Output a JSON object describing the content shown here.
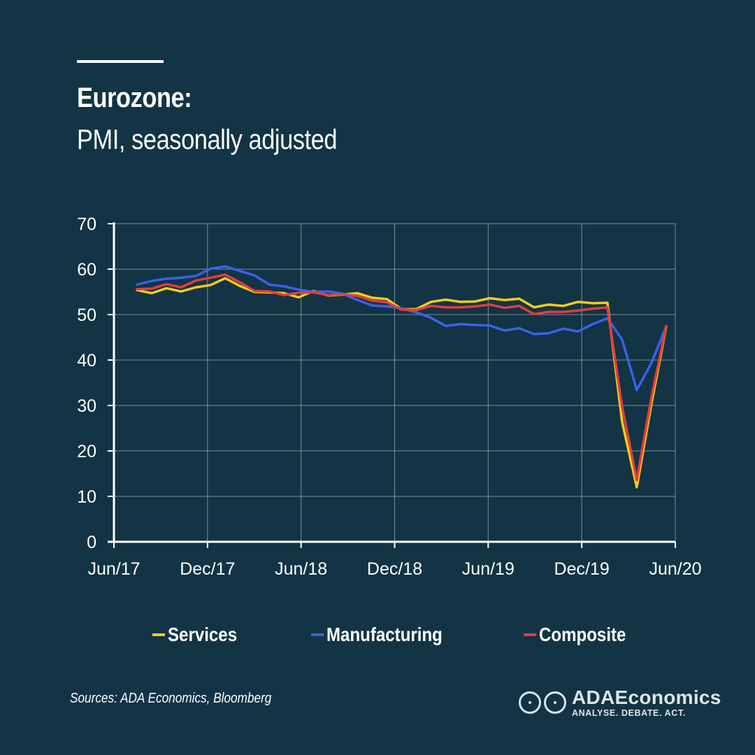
{
  "header": {
    "title": "Eurozone:",
    "subtitle": "PMI, seasonally adjusted"
  },
  "chart_data": {
    "type": "line",
    "x": [
      "Jun/17",
      "Jul/17",
      "Aug/17",
      "Sep/17",
      "Oct/17",
      "Nov/17",
      "Dec/17",
      "Jan/18",
      "Feb/18",
      "Mar/18",
      "Apr/18",
      "May/18",
      "Jun/18",
      "Jul/18",
      "Aug/18",
      "Sep/18",
      "Oct/18",
      "Nov/18",
      "Dec/18",
      "Jan/19",
      "Feb/19",
      "Mar/19",
      "Apr/19",
      "May/19",
      "Jun/19",
      "Jul/19",
      "Aug/19",
      "Sep/19",
      "Oct/19",
      "Nov/19",
      "Dec/19",
      "Jan/20",
      "Feb/20",
      "Mar/20",
      "Apr/20",
      "May/20",
      "Jun/20"
    ],
    "xticks": [
      "Jun/17",
      "Dec/17",
      "Jun/18",
      "Dec/18",
      "Jun/19",
      "Dec/19",
      "Jun/20"
    ],
    "ylim": [
      0,
      70
    ],
    "yticks": [
      0,
      10,
      20,
      30,
      40,
      50,
      60,
      70
    ],
    "grid": true,
    "legend_position": "bottom",
    "series": [
      {
        "name": "Services",
        "color": "#f2cd18",
        "values": [
          55.4,
          54.7,
          55.8,
          55.1,
          56.0,
          56.5,
          58.0,
          56.3,
          55.0,
          54.9,
          54.7,
          53.8,
          55.2,
          54.2,
          54.4,
          54.7,
          53.7,
          53.4,
          51.2,
          51.2,
          52.8,
          53.3,
          52.8,
          52.9,
          53.6,
          53.2,
          53.5,
          51.6,
          52.2,
          51.9,
          52.8,
          52.5,
          52.6,
          26.4,
          12.0,
          30.5,
          47.3
        ]
      },
      {
        "name": "Manufacturing",
        "color": "#3a61e8",
        "values": [
          56.6,
          57.4,
          57.9,
          58.1,
          58.5,
          60.1,
          60.6,
          59.6,
          58.6,
          56.6,
          56.2,
          55.5,
          55.0,
          55.1,
          54.6,
          53.2,
          52.0,
          51.8,
          51.4,
          50.5,
          49.3,
          47.5,
          47.9,
          47.7,
          47.6,
          46.5,
          47.0,
          45.7,
          45.9,
          46.9,
          46.3,
          47.9,
          49.2,
          44.5,
          33.4,
          39.4,
          47.4
        ]
      },
      {
        "name": "Composite",
        "color": "#e33d3f",
        "values": [
          55.6,
          55.7,
          56.7,
          56.0,
          57.5,
          58.1,
          58.8,
          57.1,
          55.2,
          55.1,
          54.3,
          54.8,
          54.9,
          54.3,
          54.5,
          54.1,
          53.1,
          52.7,
          51.1,
          51.0,
          51.9,
          51.6,
          51.6,
          51.8,
          52.2,
          51.5,
          51.9,
          50.1,
          50.6,
          50.6,
          50.9,
          51.3,
          51.6,
          29.7,
          13.6,
          31.9,
          47.5
        ]
      }
    ]
  },
  "legend": [
    {
      "label": "Services",
      "color": "#f2cd18"
    },
    {
      "label": "Manufacturing",
      "color": "#3a61e8"
    },
    {
      "label": "Composite",
      "color": "#e33d3f"
    }
  ],
  "footer": {
    "source": "Sources: ADA Economics, Bloomberg",
    "logo_name": "ADAEconomics",
    "logo_tagline": "ANALYSE. DEBATE. ACT."
  }
}
